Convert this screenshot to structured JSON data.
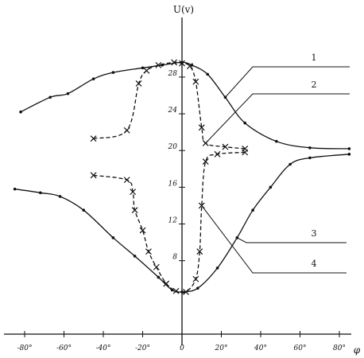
{
  "chart_data": {
    "type": "line",
    "xlabel": "φ",
    "ylabel": "U(v)",
    "xlim": [
      -85,
      90
    ],
    "ylim": [
      0,
      31
    ],
    "x_ticks": [
      {
        "value": -80,
        "label": "-80°"
      },
      {
        "value": -60,
        "label": "-60°"
      },
      {
        "value": -40,
        "label": "-40°"
      },
      {
        "value": -20,
        "label": "-20°"
      },
      {
        "value": 0,
        "label": "0"
      },
      {
        "value": 20,
        "label": "20°"
      },
      {
        "value": 40,
        "label": "40°"
      },
      {
        "value": 60,
        "label": "60°"
      },
      {
        "value": 80,
        "label": "80°"
      }
    ],
    "y_ticks": [
      {
        "value": 8,
        "label": "8"
      },
      {
        "value": 12,
        "label": "12"
      },
      {
        "value": 16,
        "label": "16"
      },
      {
        "value": 20,
        "label": "20"
      },
      {
        "value": 24,
        "label": "24"
      },
      {
        "value": 28,
        "label": "28"
      }
    ],
    "grid": false,
    "series": [
      {
        "name": "1",
        "style": "solid",
        "marker": "dot",
        "points": [
          [
            -82,
            24.2
          ],
          [
            -67,
            25.8
          ],
          [
            -58,
            26.2
          ],
          [
            -45,
            27.8
          ],
          [
            -35,
            28.5
          ],
          [
            -20,
            29.0
          ],
          [
            -10,
            29.3
          ],
          [
            0,
            29.6
          ],
          [
            5,
            29.3
          ],
          [
            13,
            28.3
          ],
          [
            22,
            25.8
          ],
          [
            32,
            23.0
          ],
          [
            48,
            21.0
          ],
          [
            65,
            20.3
          ],
          [
            85,
            20.2
          ]
        ]
      },
      {
        "name": "2",
        "style": "dashed",
        "marker": "cross",
        "points": [
          [
            -45,
            21.3
          ],
          [
            -28,
            22.2
          ],
          [
            -22,
            27.3
          ],
          [
            -18,
            28.7
          ],
          [
            -12,
            29.3
          ],
          [
            -4,
            29.6
          ],
          [
            0,
            29.5
          ],
          [
            4,
            29.2
          ],
          [
            7,
            27.5
          ],
          [
            10,
            22.5
          ],
          [
            12,
            20.8
          ],
          [
            22,
            20.4
          ],
          [
            32,
            20.2
          ]
        ]
      },
      {
        "name": "3",
        "style": "solid",
        "marker": "dot",
        "points": [
          [
            -85,
            15.8
          ],
          [
            -72,
            15.4
          ],
          [
            -62,
            15.0
          ],
          [
            -50,
            13.5
          ],
          [
            -35,
            10.5
          ],
          [
            -24,
            8.5
          ],
          [
            -12,
            6.2
          ],
          [
            -5,
            4.8
          ],
          [
            0,
            4.6
          ],
          [
            8,
            5.0
          ],
          [
            18,
            7.2
          ],
          [
            28,
            10.5
          ],
          [
            36,
            13.5
          ],
          [
            45,
            16.0
          ],
          [
            55,
            18.5
          ],
          [
            65,
            19.2
          ],
          [
            85,
            19.6
          ]
        ]
      },
      {
        "name": "4",
        "style": "dashed",
        "marker": "cross",
        "points": [
          [
            -45,
            17.3
          ],
          [
            -28,
            16.8
          ],
          [
            -25,
            15.5
          ],
          [
            -24,
            13.5
          ],
          [
            -20,
            11.3
          ],
          [
            -17,
            9.0
          ],
          [
            -13,
            7.3
          ],
          [
            -8,
            5.5
          ],
          [
            -3,
            4.7
          ],
          [
            2,
            4.6
          ],
          [
            7,
            6.0
          ],
          [
            9,
            9.0
          ],
          [
            10,
            14.0
          ],
          [
            12,
            18.8
          ],
          [
            18,
            19.6
          ],
          [
            32,
            19.8
          ]
        ]
      }
    ]
  }
}
